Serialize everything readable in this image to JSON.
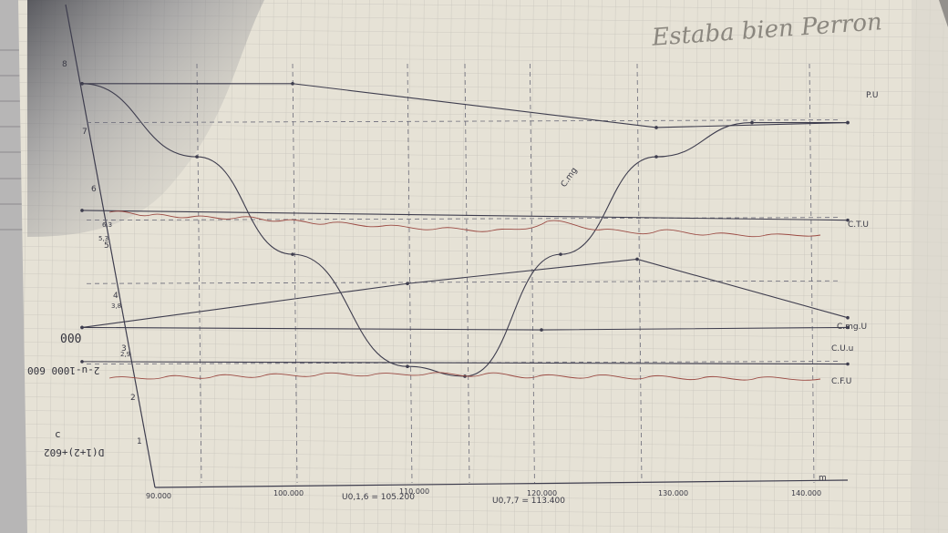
{
  "chart_data": {
    "type": "line",
    "title": "",
    "xlabel": "m",
    "ylabel": "",
    "xlim": [
      90000,
      130000
    ],
    "ylim": [
      0,
      8.5
    ],
    "grid": true,
    "x_ticks": [
      "90.000",
      "100.000",
      "110.000",
      "120.000",
      "130.000",
      "140.000"
    ],
    "x_annotations": [
      "U0,1,6 = 105.200",
      "U0,7,7 = 113.400"
    ],
    "y_ticks": [
      "1",
      "2",
      "3",
      "4",
      "5",
      "6",
      "7",
      "8"
    ],
    "y_extra_ticks": [
      "2,9",
      "3,8",
      "5,3",
      "6,3"
    ],
    "series": [
      {
        "name": "P.U",
        "x": [
          90000,
          101000,
          120000,
          130000
        ],
        "y": [
          8.0,
          8.0,
          7.1,
          7.2
        ]
      },
      {
        "name": "C.mg",
        "x": [
          90000,
          96000,
          101000,
          107000,
          110000,
          115000,
          120000,
          125000,
          130000
        ],
        "y": [
          8.0,
          6.5,
          4.5,
          2.2,
          2.0,
          4.5,
          6.5,
          7.2,
          7.2
        ]
      },
      {
        "name": "C.T.U",
        "x": [
          90000,
          130000
        ],
        "y": [
          5.4,
          5.2
        ]
      },
      {
        "name": "C.mg.U",
        "x": [
          90000,
          107000,
          119000,
          130000
        ],
        "y": [
          3.0,
          3.9,
          4.4,
          3.2
        ]
      },
      {
        "name": "C.U.u",
        "x": [
          90000,
          114000,
          130000
        ],
        "y": [
          3.0,
          2.95,
          3.0
        ]
      },
      {
        "name": "C.F.U",
        "x": [
          90000,
          130000
        ],
        "y": [
          2.3,
          2.25
        ]
      }
    ],
    "legend": "right",
    "annotations": [
      "Estaba bien Perron"
    ]
  },
  "margin_notes": {
    "left_1": "000",
    "left_2": "2-u-1000 600",
    "left_3": "c",
    "left_4": "D(1+2)+602"
  },
  "colors": {
    "paper": "#e6e2d6",
    "grid": "#c9c6bd",
    "ink": "#3e3d4e",
    "red_ink": "#9b4a43",
    "shadow": "#1f1d22"
  }
}
